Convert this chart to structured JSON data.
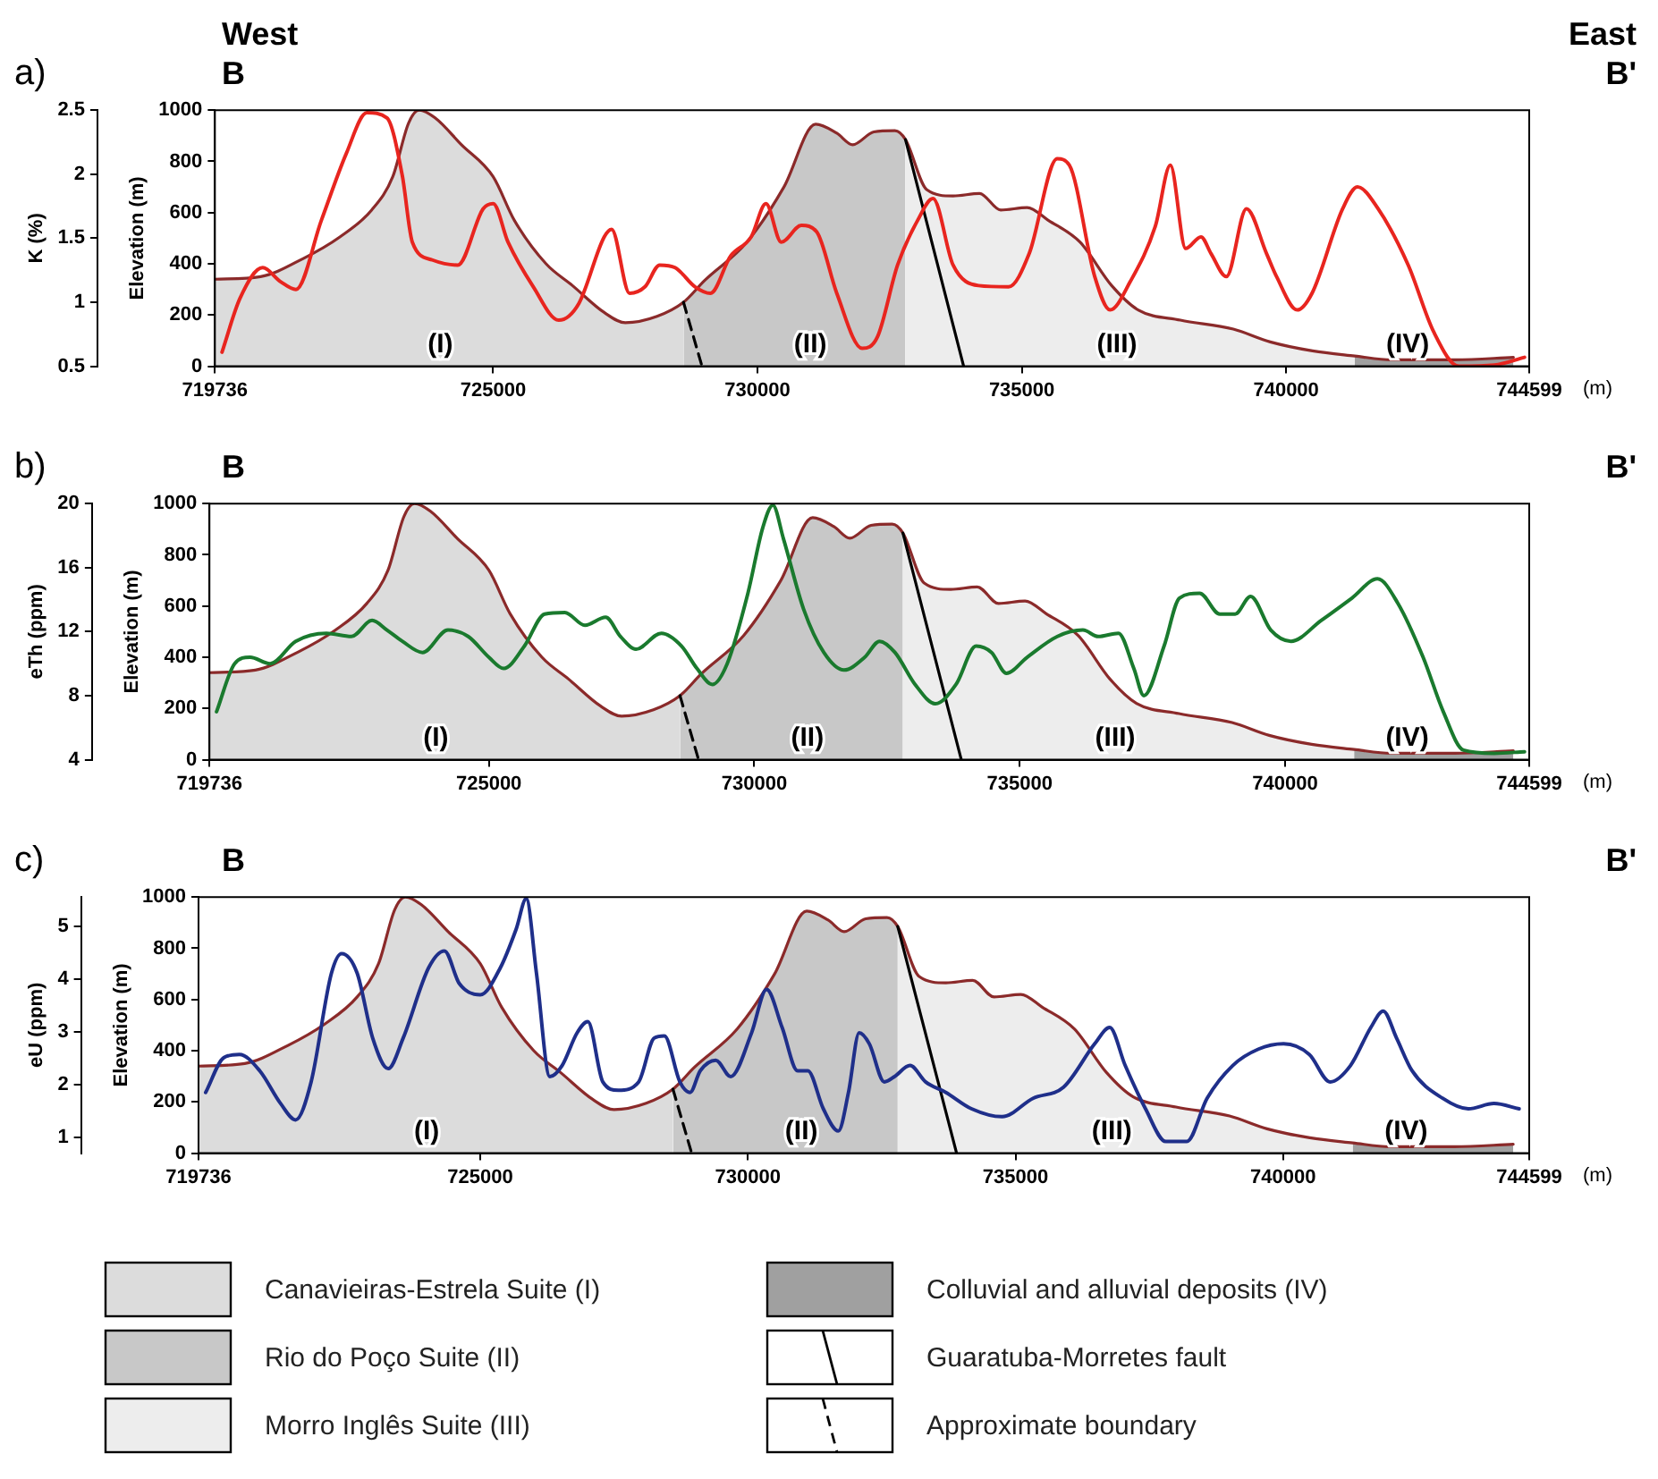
{
  "chart_data": [
    {
      "type": "line",
      "title": "a)",
      "annotations": [
        "West",
        "East",
        "B",
        "B'",
        {
          "text": "(I)",
          "x": 724000,
          "y": 30
        },
        {
          "text": "(II)",
          "x": 731000,
          "y": 30
        },
        {
          "text": "(III)",
          "x": 736800,
          "y": 30
        },
        {
          "text": "(IV)",
          "x": 742300,
          "y": 30
        }
      ],
      "xlabel": "(m)",
      "ylabel": "Elevation (m)",
      "y2label": "K (%)",
      "xlim": [
        719736,
        744599
      ],
      "xticks": [
        719736,
        725000,
        730000,
        735000,
        740000,
        744599
      ],
      "ylim": [
        0,
        1000
      ],
      "yticks": [
        0,
        200,
        400,
        600,
        800,
        1000
      ],
      "y2lim": [
        0.5,
        2.5
      ],
      "y2ticks": [
        0.5,
        1,
        1.5,
        2,
        2.5
      ],
      "grid": false,
      "marker": "none",
      "series": [
        {
          "type": "area",
          "color": "#dcdcdc",
          "x": [
            719736,
            720600,
            721400,
            722100,
            722700,
            723100,
            723400,
            723600,
            723900,
            724400,
            725000,
            725400,
            726000,
            726500,
            727100,
            727500,
            728100,
            728600
          ],
          "values": [
            340,
            350,
            420,
            505,
            610,
            740,
            950,
            1000,
            970,
            865,
            740,
            570,
            400,
            315,
            210,
            170,
            195,
            250
          ]
        },
        {
          "type": "area",
          "color": "#c8c8c8",
          "x": [
            728600,
            729000,
            729800,
            730500,
            731100,
            731500,
            731800,
            732200,
            732600,
            732800
          ],
          "values": [
            250,
            335,
            485,
            700,
            945,
            910,
            865,
            915,
            920,
            885
          ]
        },
        {
          "type": "area",
          "color": "#ededed",
          "x": [
            732800,
            733200,
            733700,
            734200,
            734600,
            735100,
            735500,
            736100,
            736700,
            737200,
            738000,
            739000,
            739700,
            740500,
            741300
          ],
          "values": [
            885,
            690,
            665,
            675,
            610,
            620,
            570,
            485,
            315,
            220,
            180,
            145,
            95,
            60,
            40
          ]
        },
        {
          "type": "area",
          "color": "#a0a0a0",
          "x": [
            741300,
            742000,
            743200,
            744300
          ],
          "values": [
            40,
            25,
            25,
            35
          ]
        },
        {
          "type": "line",
          "color": "#8b2a2a",
          "x": [
            719736,
            720600,
            721400,
            722100,
            722700,
            723100,
            723400,
            723600,
            723900,
            724400,
            725000,
            725400,
            726000,
            726500,
            727100,
            727500,
            728100,
            728600,
            729000,
            729800,
            730500,
            731100,
            731500,
            731800,
            732200,
            732600,
            732800,
            733200,
            733700,
            734200,
            734600,
            735100,
            735500,
            736100,
            736700,
            737200,
            738000,
            739000,
            739700,
            740500,
            741300,
            742000,
            743200,
            744300
          ],
          "values": [
            340,
            350,
            420,
            505,
            610,
            740,
            950,
            1000,
            970,
            865,
            740,
            570,
            400,
            315,
            210,
            170,
            195,
            250,
            335,
            485,
            700,
            945,
            910,
            865,
            915,
            920,
            885,
            690,
            665,
            675,
            610,
            620,
            570,
            485,
            315,
            220,
            180,
            145,
            95,
            60,
            40,
            25,
            25,
            35
          ]
        },
        {
          "type": "line",
          "color": "#000000",
          "line_style": "solid",
          "x": [
            732800,
            733900
          ],
          "values": [
            885,
            0
          ]
        },
        {
          "type": "line",
          "color": "#000000",
          "line_style": "dashed",
          "x": [
            728600,
            728950
          ],
          "values": [
            250,
            0
          ]
        },
        {
          "type": "line",
          "color": "#e8251f",
          "axis": "y2",
          "x": [
            719870,
            720210,
            720640,
            720980,
            721270,
            721750,
            722220,
            722610,
            722990,
            723280,
            723470,
            723850,
            724330,
            724810,
            725000,
            725280,
            725760,
            726240,
            726620,
            727100,
            727240,
            727580,
            727870,
            728150,
            728440,
            728820,
            729110,
            729490,
            729880,
            730160,
            730450,
            730830,
            731120,
            731500,
            731980,
            732270,
            732650,
            733030,
            733320,
            733700,
            734180,
            734750,
            735140,
            735670,
            735900,
            736380,
            736670,
            737050,
            737530,
            737810,
            738100,
            738390,
            738580,
            738870,
            739250,
            739630,
            739820,
            740210,
            740490,
            741070,
            741350,
            741740,
            742310,
            742790,
            743270,
            743940,
            744510
          ],
          "values": [
            0.61,
            1.03,
            1.27,
            1.16,
            1.1,
            1.64,
            2.16,
            2.48,
            2.44,
            1.99,
            1.47,
            1.33,
            1.29,
            1.73,
            1.77,
            1.47,
            1.12,
            0.86,
            0.99,
            1.51,
            1.57,
            1.07,
            1.12,
            1.29,
            1.27,
            1.12,
            1.07,
            1.36,
            1.51,
            1.77,
            1.47,
            1.6,
            1.55,
            1.07,
            0.64,
            0.73,
            1.29,
            1.64,
            1.81,
            1.29,
            1.13,
            1.12,
            1.38,
            2.12,
            2.07,
            1.2,
            0.94,
            1.16,
            1.6,
            2.07,
            1.42,
            1.51,
            1.38,
            1.2,
            1.73,
            1.38,
            1.2,
            0.94,
            1.07,
            1.73,
            1.9,
            1.73,
            1.29,
            0.77,
            0.5,
            0.51,
            0.57
          ]
        }
      ]
    },
    {
      "type": "line",
      "title": "b)",
      "annotations": [
        "B",
        "B'",
        {
          "text": "(I)",
          "x": 724000,
          "y": 30
        },
        {
          "text": "(II)",
          "x": 731000,
          "y": 30
        },
        {
          "text": "(III)",
          "x": 736800,
          "y": 30
        },
        {
          "text": "(IV)",
          "x": 742300,
          "y": 30
        }
      ],
      "xlabel": "(m)",
      "ylabel": "Elevation (m)",
      "y2label": "eTh (ppm)",
      "xlim": [
        719736,
        744599
      ],
      "xticks": [
        719736,
        725000,
        730000,
        735000,
        740000,
        744599
      ],
      "ylim": [
        0,
        1000
      ],
      "yticks": [
        0,
        200,
        400,
        600,
        800,
        1000
      ],
      "y2lim": [
        4,
        20
      ],
      "y2ticks": [
        4,
        8,
        12,
        16,
        20
      ],
      "grid": false,
      "marker": "none",
      "series": [
        {
          "type": "area",
          "color": "#dcdcdc",
          "x": [
            719736,
            720600,
            721400,
            722100,
            722700,
            723100,
            723400,
            723600,
            723900,
            724400,
            725000,
            725400,
            726000,
            726500,
            727100,
            727500,
            728100,
            728600
          ],
          "values": [
            340,
            350,
            420,
            505,
            610,
            740,
            950,
            1000,
            970,
            865,
            740,
            570,
            400,
            315,
            210,
            170,
            195,
            250
          ]
        },
        {
          "type": "area",
          "color": "#c8c8c8",
          "x": [
            728600,
            729000,
            729800,
            730500,
            731100,
            731500,
            731800,
            732200,
            732600,
            732800
          ],
          "values": [
            250,
            335,
            485,
            700,
            945,
            910,
            865,
            915,
            920,
            885
          ]
        },
        {
          "type": "area",
          "color": "#ededed",
          "x": [
            732800,
            733200,
            733700,
            734200,
            734600,
            735100,
            735500,
            736100,
            736700,
            737200,
            738000,
            739000,
            739700,
            740500,
            741300
          ],
          "values": [
            885,
            690,
            665,
            675,
            610,
            620,
            570,
            485,
            315,
            220,
            180,
            145,
            95,
            60,
            40
          ]
        },
        {
          "type": "area",
          "color": "#a0a0a0",
          "x": [
            741300,
            742000,
            743200,
            744300
          ],
          "values": [
            40,
            25,
            25,
            35
          ]
        },
        {
          "type": "line",
          "color": "#8b2a2a",
          "x": [
            719736,
            720600,
            721400,
            722100,
            722700,
            723100,
            723400,
            723600,
            723900,
            724400,
            725000,
            725400,
            726000,
            726500,
            727100,
            727500,
            728100,
            728600,
            729000,
            729800,
            730500,
            731100,
            731500,
            731800,
            732200,
            732600,
            732800,
            733200,
            733700,
            734200,
            734600,
            735100,
            735500,
            736100,
            736700,
            737200,
            738000,
            739000,
            739700,
            740500,
            741300,
            742000,
            743200,
            744300
          ],
          "values": [
            340,
            350,
            420,
            505,
            610,
            740,
            950,
            1000,
            970,
            865,
            740,
            570,
            400,
            315,
            210,
            170,
            195,
            250,
            335,
            485,
            700,
            945,
            910,
            865,
            915,
            920,
            885,
            690,
            665,
            675,
            610,
            620,
            570,
            485,
            315,
            220,
            180,
            145,
            95,
            60,
            40,
            25,
            25,
            35
          ]
        },
        {
          "type": "line",
          "color": "#000000",
          "line_style": "solid",
          "x": [
            732800,
            733900
          ],
          "values": [
            885,
            0
          ]
        },
        {
          "type": "line",
          "color": "#000000",
          "line_style": "dashed",
          "x": [
            728600,
            728950
          ],
          "values": [
            250,
            0
          ]
        },
        {
          "type": "line",
          "color": "#1a7a2e",
          "axis": "y2",
          "x": [
            719870,
            720210,
            720500,
            720880,
            721360,
            721940,
            722410,
            722800,
            723080,
            723370,
            723750,
            724230,
            724610,
            725000,
            725280,
            725670,
            726050,
            726430,
            726810,
            727200,
            727480,
            727770,
            728250,
            728630,
            728920,
            729210,
            729490,
            729880,
            730160,
            730350,
            730550,
            730930,
            731310,
            731690,
            732080,
            732360,
            732650,
            733030,
            733410,
            733800,
            734180,
            734470,
            734750,
            735140,
            735710,
            736190,
            736480,
            736860,
            737150,
            737340,
            737720,
            738010,
            738390,
            738770,
            739060,
            739350,
            739730,
            740110,
            740680,
            741260,
            741740,
            742120,
            742600,
            742980,
            743360,
            743940,
            744510
          ],
          "values": [
            7,
            10,
            10.4,
            10,
            11.4,
            11.9,
            11.7,
            12.7,
            12.1,
            11.4,
            10.7,
            12.1,
            11.7,
            10.4,
            9.7,
            11.1,
            13.1,
            13.2,
            12.4,
            12.9,
            11.7,
            10.9,
            11.9,
            11.1,
            9.7,
            8.7,
            10,
            14.4,
            18.5,
            19.9,
            17.8,
            13.4,
            10.7,
            9.6,
            10.4,
            11.4,
            10.7,
            8.7,
            7.5,
            8.7,
            11.1,
            10.7,
            9.4,
            10.4,
            11.7,
            12.1,
            11.7,
            11.9,
            9.7,
            8,
            11.1,
            14.1,
            14.4,
            13.1,
            13.1,
            14.2,
            12.1,
            11.4,
            12.7,
            14.1,
            15.3,
            13.8,
            10.4,
            7,
            4.6,
            4.4,
            4.5
          ]
        }
      ]
    },
    {
      "type": "line",
      "title": "c)",
      "annotations": [
        "B",
        "B'",
        {
          "text": "(I)",
          "x": 724000,
          "y": 30
        },
        {
          "text": "(II)",
          "x": 731000,
          "y": 30
        },
        {
          "text": "(III)",
          "x": 736800,
          "y": 30
        },
        {
          "text": "(IV)",
          "x": 742300,
          "y": 30
        }
      ],
      "xlabel": "(m)",
      "ylabel": "Elevation (m)",
      "y2label": "eU (ppm)",
      "xlim": [
        719736,
        744599
      ],
      "xticks": [
        719736,
        725000,
        730000,
        735000,
        740000,
        744599
      ],
      "ylim": [
        0,
        1000
      ],
      "yticks": [
        0,
        200,
        400,
        600,
        800,
        1000
      ],
      "y2lim": [
        0.7,
        5.55
      ],
      "y2ticks": [
        1,
        2,
        3,
        4,
        5
      ],
      "grid": false,
      "marker": "none",
      "legend": "bottom",
      "series": [
        {
          "type": "area",
          "name": "Canavieiras-Estrela Suite (I)",
          "color": "#dcdcdc",
          "x": [
            719736,
            720600,
            721400,
            722100,
            722700,
            723100,
            723400,
            723600,
            723900,
            724400,
            725000,
            725400,
            726000,
            726500,
            727100,
            727500,
            728100,
            728600
          ],
          "values": [
            340,
            350,
            420,
            505,
            610,
            740,
            950,
            1000,
            970,
            865,
            740,
            570,
            400,
            315,
            210,
            170,
            195,
            250
          ]
        },
        {
          "type": "area",
          "name": "Rio do Poço Suite (II)",
          "color": "#c8c8c8",
          "x": [
            728600,
            729000,
            729800,
            730500,
            731100,
            731500,
            731800,
            732200,
            732600,
            732800
          ],
          "values": [
            250,
            335,
            485,
            700,
            945,
            910,
            865,
            915,
            920,
            885
          ]
        },
        {
          "type": "area",
          "name": "Morro Inglês Suite (III)",
          "color": "#ededed",
          "x": [
            732800,
            733200,
            733700,
            734200,
            734600,
            735100,
            735500,
            736100,
            736700,
            737200,
            738000,
            739000,
            739700,
            740500,
            741300
          ],
          "values": [
            885,
            690,
            665,
            675,
            610,
            620,
            570,
            485,
            315,
            220,
            180,
            145,
            95,
            60,
            40
          ]
        },
        {
          "type": "area",
          "name": "Colluvial and alluvial deposits (IV)",
          "color": "#a0a0a0",
          "x": [
            741300,
            742000,
            743200,
            744300
          ],
          "values": [
            40,
            25,
            25,
            35
          ]
        },
        {
          "type": "line",
          "color": "#8b2a2a",
          "x": [
            719736,
            720600,
            721400,
            722100,
            722700,
            723100,
            723400,
            723600,
            723900,
            724400,
            725000,
            725400,
            726000,
            726500,
            727100,
            727500,
            728100,
            728600,
            729000,
            729800,
            730500,
            731100,
            731500,
            731800,
            732200,
            732600,
            732800,
            733200,
            733700,
            734200,
            734600,
            735100,
            735500,
            736100,
            736700,
            737200,
            738000,
            739000,
            739700,
            740500,
            741300,
            742000,
            743200,
            744300
          ],
          "values": [
            340,
            350,
            420,
            505,
            610,
            740,
            950,
            1000,
            970,
            865,
            740,
            570,
            400,
            315,
            210,
            170,
            195,
            250,
            335,
            485,
            700,
            945,
            910,
            865,
            915,
            920,
            885,
            690,
            665,
            675,
            610,
            620,
            570,
            485,
            315,
            220,
            180,
            145,
            95,
            60,
            40,
            25,
            25,
            35
          ]
        },
        {
          "type": "line",
          "name": "Guaratuba-Morretes fault",
          "color": "#000000",
          "line_style": "solid",
          "x": [
            732800,
            733900
          ],
          "values": [
            885,
            0
          ]
        },
        {
          "type": "line",
          "name": "Approximate boundary",
          "color": "#000000",
          "line_style": "dashed",
          "x": [
            728600,
            728950
          ],
          "values": [
            250,
            0
          ]
        },
        {
          "type": "line",
          "color": "#1f2f8a",
          "axis": "y2",
          "x": [
            719870,
            720210,
            720500,
            720880,
            721270,
            721550,
            721840,
            722220,
            722410,
            722700,
            722990,
            723280,
            723560,
            724040,
            724330,
            724610,
            725000,
            725380,
            725670,
            725860,
            726050,
            726300,
            726530,
            726810,
            727010,
            727290,
            727580,
            727960,
            728250,
            728440,
            728730,
            728920,
            729110,
            729400,
            729680,
            730070,
            730350,
            730640,
            730930,
            731120,
            731410,
            731690,
            731880,
            732080,
            732270,
            732550,
            732740,
            733030,
            733320,
            733700,
            734180,
            734750,
            735330,
            735900,
            736480,
            736760,
            737050,
            737430,
            737810,
            738200,
            738580,
            739060,
            739540,
            740010,
            740490,
            740880,
            741260,
            741640,
            741870,
            742120,
            742410,
            742980,
            743460,
            743940,
            744410
          ],
          "values": [
            1.85,
            2.51,
            2.57,
            2.26,
            1.64,
            1.33,
            2.05,
            4.11,
            4.48,
            4.11,
            2.88,
            2.3,
            2.88,
            4.22,
            4.53,
            3.91,
            3.7,
            4.22,
            4.94,
            5.52,
            4.11,
            2.15,
            2.36,
            2.98,
            3.19,
            2.05,
            1.89,
            2.05,
            2.88,
            2.92,
            2.05,
            1.85,
            2.26,
            2.46,
            2.15,
            2.98,
            3.8,
            3.08,
            2.26,
            2.26,
            1.54,
            1.12,
            1.85,
            2.98,
            2.77,
            2.05,
            2.15,
            2.36,
            2.05,
            1.85,
            1.54,
            1.39,
            1.74,
            1.95,
            2.77,
            3.08,
            2.36,
            1.54,
            0.92,
            0.92,
            1.74,
            2.36,
            2.67,
            2.77,
            2.57,
            2.05,
            2.36,
            3.08,
            3.39,
            2.88,
            2.26,
            1.74,
            1.54,
            1.64,
            1.54
          ]
        }
      ]
    }
  ]
}
